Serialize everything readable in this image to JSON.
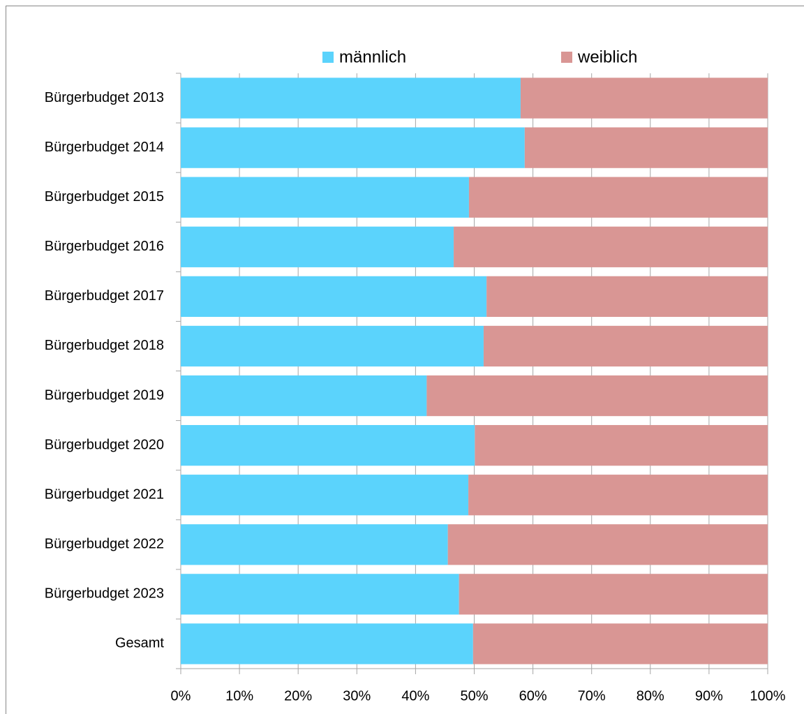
{
  "chart_data": {
    "type": "stacked-barh",
    "categories": [
      "Bürgerbudget 2013",
      "Bürgerbudget 2014",
      "Bürgerbudget 2015",
      "Bürgerbudget 2016",
      "Bürgerbudget 2017",
      "Bürgerbudget 2018",
      "Bürgerbudget 2019",
      "Bürgerbudget 2020",
      "Bürgerbudget 2021",
      "Bürgerbudget 2022",
      "Bürgerbudget 2023",
      "Gesamt"
    ],
    "series": [
      {
        "name": "männlich",
        "color": "#5bd3fc",
        "values": [
          57.9,
          58.6,
          49.1,
          46.5,
          52.1,
          51.6,
          41.9,
          50.1,
          49.0,
          45.5,
          47.4,
          49.8
        ]
      },
      {
        "name": "weiblich",
        "color": "#d99694",
        "values": [
          42.1,
          41.4,
          50.9,
          53.5,
          47.9,
          48.4,
          58.1,
          49.9,
          51.0,
          54.5,
          52.6,
          50.2
        ]
      }
    ],
    "xlim": [
      0,
      100
    ],
    "xticks": [
      {
        "value": 0,
        "label": "0%"
      },
      {
        "value": 10,
        "label": "10%"
      },
      {
        "value": 20,
        "label": "20%"
      },
      {
        "value": 30,
        "label": "30%"
      },
      {
        "value": 40,
        "label": "40%"
      },
      {
        "value": 50,
        "label": "50%"
      },
      {
        "value": 60,
        "label": "60%"
      },
      {
        "value": 70,
        "label": "70%"
      },
      {
        "value": 80,
        "label": "80%"
      },
      {
        "value": 90,
        "label": "90%"
      },
      {
        "value": 100,
        "label": "100%"
      }
    ],
    "grid": true,
    "legend": "top"
  }
}
